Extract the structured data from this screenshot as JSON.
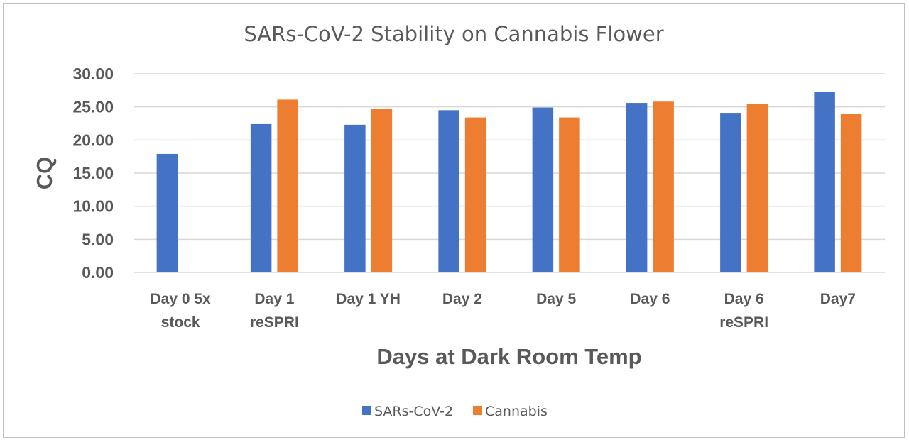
{
  "chart_data": {
    "type": "bar",
    "title": "SARs-CoV-2 Stability on Cannabis Flower",
    "xlabel": "Days at Dark Room Temp",
    "ylabel": "CQ",
    "ylim": [
      0,
      30
    ],
    "yticks": [
      "0.00",
      "5.00",
      "10.00",
      "15.00",
      "20.00",
      "25.00",
      "30.00"
    ],
    "grid": true,
    "legend_position": "bottom",
    "categories": [
      [
        "Day 0 5x",
        "stock"
      ],
      [
        "Day 1",
        "reSPRI"
      ],
      [
        "Day 1 YH"
      ],
      [
        "Day 2"
      ],
      [
        "Day 5"
      ],
      [
        "Day 6"
      ],
      [
        "Day 6",
        "reSPRI"
      ],
      [
        "Day7"
      ]
    ],
    "series": [
      {
        "name": "SARs-CoV-2",
        "color": "#4472c4",
        "values": [
          17.9,
          22.4,
          22.3,
          24.5,
          24.9,
          25.6,
          24.1,
          27.3
        ]
      },
      {
        "name": "Cannabis",
        "color": "#ed7d31",
        "values": [
          null,
          26.1,
          24.7,
          23.4,
          23.4,
          25.8,
          25.4,
          24.0
        ]
      }
    ]
  }
}
